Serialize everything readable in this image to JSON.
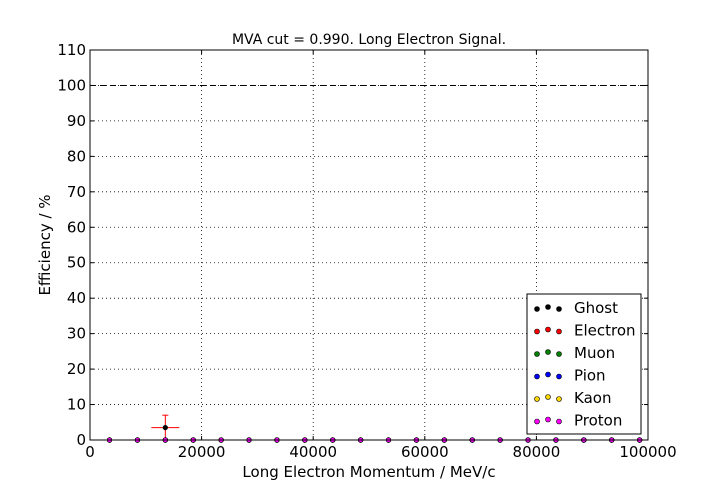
{
  "chart_data": {
    "type": "scatter",
    "title": "MVA cut = 0.990. Long Electron Signal.",
    "xlabel": "Long Electron Momentum / MeV/c",
    "ylabel": "Efficiency / %",
    "xlim": [
      0,
      100000
    ],
    "ylim": [
      0,
      110
    ],
    "xticks": [
      0,
      20000,
      40000,
      60000,
      80000,
      100000
    ],
    "xtick_labels": [
      "0",
      "20000",
      "40000",
      "60000",
      "80000",
      "100000"
    ],
    "yticks": [
      0,
      10,
      20,
      30,
      40,
      50,
      60,
      70,
      80,
      90,
      100,
      110
    ],
    "ytick_labels": [
      "0",
      "10",
      "20",
      "30",
      "40",
      "50",
      "60",
      "70",
      "80",
      "90",
      "100",
      "110"
    ],
    "grid": true,
    "reference_line": 100,
    "legend_position": "lower-right",
    "x": [
      3500,
      8500,
      13500,
      18500,
      23500,
      28500,
      33500,
      38500,
      43500,
      48500,
      53500,
      58500,
      63500,
      68500,
      73500,
      78500,
      83500,
      88500,
      93500,
      98500
    ],
    "series": [
      {
        "name": "Ghost",
        "color": "#000000",
        "values": [
          0,
          0,
          0,
          0,
          0,
          0,
          0,
          0,
          0,
          0,
          0,
          0,
          0,
          0,
          0,
          0,
          0,
          0,
          0,
          0
        ]
      },
      {
        "name": "Electron",
        "color": "#ff0000",
        "values": [
          0,
          0,
          3.5,
          0,
          0,
          0,
          0,
          0,
          0,
          0,
          0,
          0,
          0,
          0,
          0,
          0,
          0,
          0,
          0,
          0
        ],
        "error_points": [
          {
            "x": 13500,
            "y": 3.5,
            "xerr": 2500,
            "yerr": 3.5
          }
        ]
      },
      {
        "name": "Muon",
        "color": "#008000",
        "values": [
          0,
          0,
          0,
          0,
          0,
          0,
          0,
          0,
          0,
          0,
          0,
          0,
          0,
          0,
          0,
          0,
          0,
          0,
          0,
          0
        ]
      },
      {
        "name": "Pion",
        "color": "#0000ff",
        "values": [
          0,
          0,
          0,
          0,
          0,
          0,
          0,
          0,
          0,
          0,
          0,
          0,
          0,
          0,
          0,
          0,
          0,
          0,
          0,
          0
        ]
      },
      {
        "name": "Kaon",
        "color": "#ffd700",
        "values": [
          0,
          0,
          0,
          0,
          0,
          0,
          0,
          0,
          0,
          0,
          0,
          0,
          0,
          0,
          0,
          0,
          0,
          0,
          0,
          0
        ]
      },
      {
        "name": "Proton",
        "color": "#ff00ff",
        "values": [
          0,
          0,
          0,
          0,
          0,
          0,
          0,
          0,
          0,
          0,
          0,
          0,
          0,
          0,
          0,
          0,
          0,
          0,
          0,
          0
        ]
      }
    ]
  }
}
